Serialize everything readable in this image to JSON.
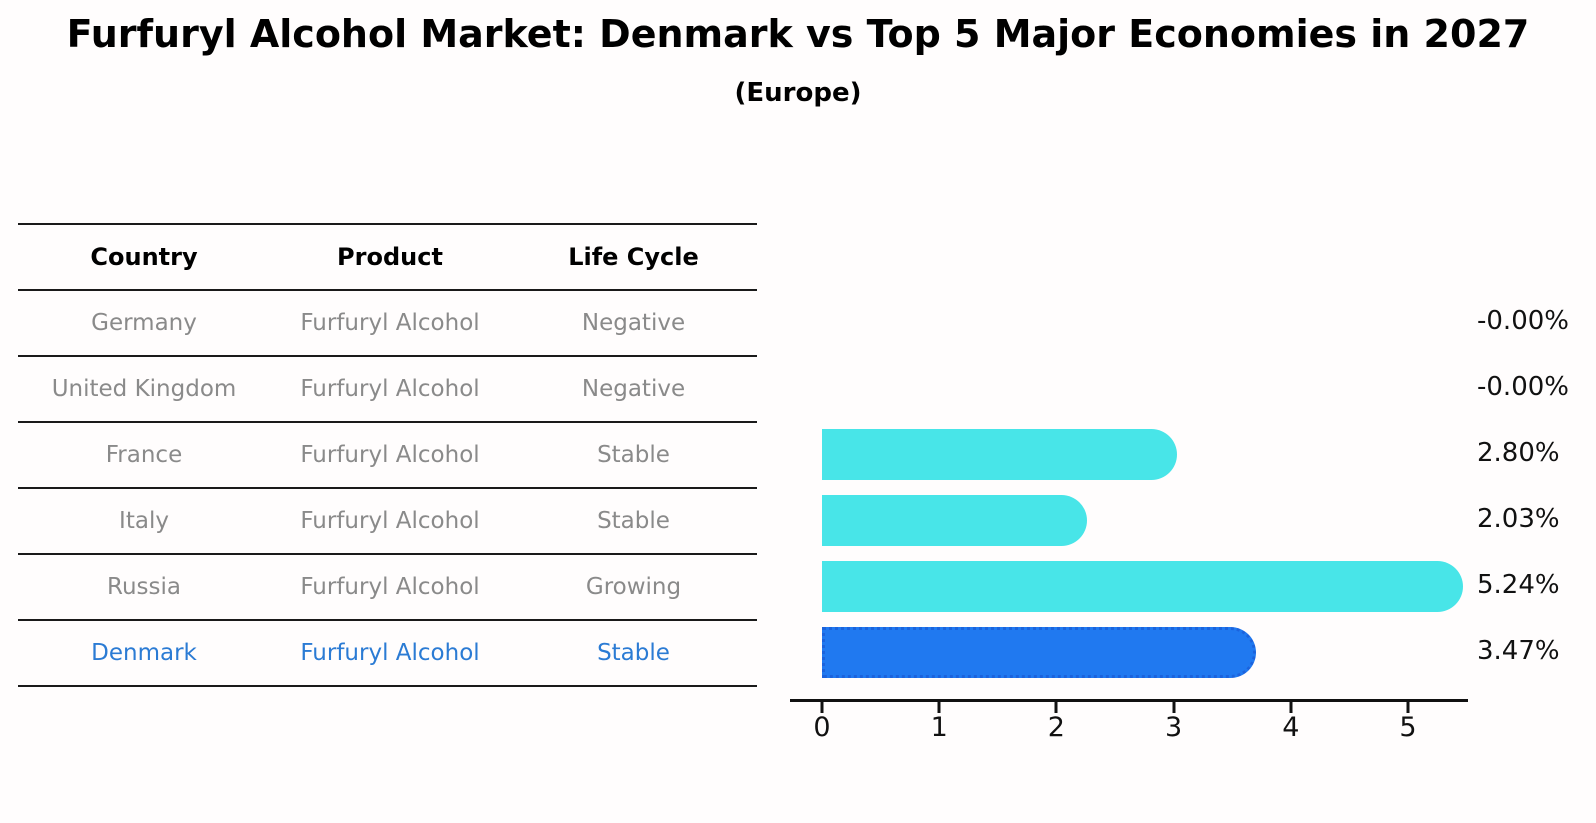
{
  "title": "Furfuryl Alcohol Market: Denmark vs Top 5 Major Economies in 2027",
  "subtitle": "(Europe)",
  "table": {
    "headers": [
      "Country",
      "Product",
      "Life Cycle"
    ],
    "rows": [
      {
        "country": "Germany",
        "product": "Furfuryl Alcohol",
        "life_cycle": "Negative",
        "highlight": false
      },
      {
        "country": "United Kingdom",
        "product": "Furfuryl Alcohol",
        "life_cycle": "Negative",
        "highlight": false
      },
      {
        "country": "France",
        "product": "Furfuryl Alcohol",
        "life_cycle": "Stable",
        "highlight": false
      },
      {
        "country": "Italy",
        "product": "Furfuryl Alcohol",
        "life_cycle": "Stable",
        "highlight": false
      },
      {
        "country": "Russia",
        "product": "Furfuryl Alcohol",
        "life_cycle": "Growing",
        "highlight": false
      },
      {
        "country": "Denmark",
        "product": "Furfuryl Alcohol",
        "life_cycle": "Stable",
        "highlight": true
      }
    ]
  },
  "chart_data": {
    "type": "bar",
    "orientation": "horizontal",
    "title": "Furfuryl Alcohol Market: Denmark vs Top 5 Major Economies in 2027 (Europe)",
    "categories": [
      "Germany",
      "United Kingdom",
      "France",
      "Italy",
      "Russia",
      "Denmark"
    ],
    "values": [
      -0.0,
      -0.0,
      2.8,
      2.03,
      5.24,
      3.47
    ],
    "value_labels": [
      "-0.00%",
      "-0.00%",
      "2.80%",
      "2.03%",
      "5.24%",
      "3.47%"
    ],
    "x_ticks": [
      "0",
      "1",
      "2",
      "3",
      "4",
      "5"
    ],
    "xlim": [
      0,
      5.5
    ],
    "grid": false,
    "legend": false,
    "bar_color": "#48e5e8",
    "highlight_index": 5,
    "highlight_color": "#2079f0",
    "highlight_border_color": "#1b63dd",
    "highlight_text_color": "#2b7bd4",
    "xlabel": "",
    "ylabel": ""
  }
}
